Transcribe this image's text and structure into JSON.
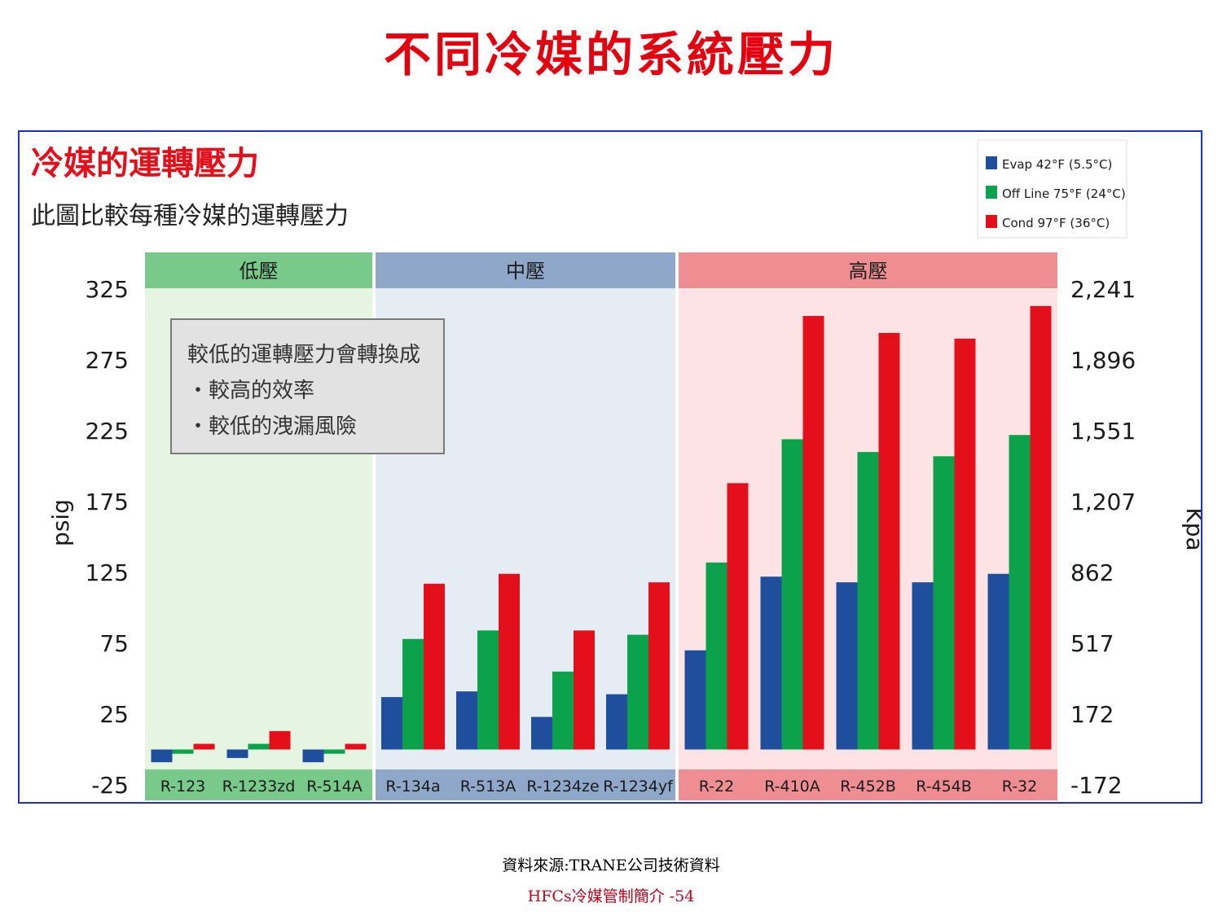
{
  "slide": {
    "title": "不同冷媒的系統壓力",
    "source": "資料來源:TRANE公司技術資料",
    "page_label": "HFCs冷媒管制簡介 -54"
  },
  "chart_data": {
    "type": "bar",
    "title": "冷媒的運轉壓力",
    "subtitle": "此圖比較每種冷媒的運轉壓力",
    "ylabel": "psig",
    "ylabel_right": "Kpa",
    "ylim": [
      -25,
      325
    ],
    "yticks": [
      325,
      275,
      225,
      175,
      125,
      75,
      25,
      -25
    ],
    "yticks_right": [
      "2,241",
      "1,896",
      "1,551",
      "1,207",
      "862",
      "517",
      "172",
      "-172"
    ],
    "groups": [
      {
        "label": "低壓",
        "categories": [
          "R-123",
          "R-1233zd",
          "R-514A"
        ],
        "color": "#78c98a",
        "bg": "#e6f5e1"
      },
      {
        "label": "中壓",
        "categories": [
          "R-134a",
          "R-513A",
          "R-1234ze",
          "R-1234yf"
        ],
        "color": "#8fa7c9",
        "bg": "#e6ecf4"
      },
      {
        "label": "高壓",
        "categories": [
          "R-22",
          "R-410A",
          "R-452B",
          "R-454B",
          "R-32"
        ],
        "color": "#ef8e92",
        "bg": "#fde3e3"
      }
    ],
    "categories": [
      "R-123",
      "R-1233zd",
      "R-514A",
      "R-134a",
      "R-513A",
      "R-1234ze",
      "R-1234yf",
      "R-22",
      "R-410A",
      "R-452B",
      "R-454B",
      "R-32"
    ],
    "series": [
      {
        "name": "Evap 42°F (5.5°C)",
        "color": "#1f4e9c",
        "values": [
          -9,
          -6,
          -9,
          37,
          41,
          23,
          39,
          70,
          122,
          118,
          118,
          124
        ]
      },
      {
        "name": "Off Line 75°F (24°C)",
        "color": "#0ca14b",
        "values": [
          -3,
          4,
          -3,
          78,
          84,
          55,
          81,
          132,
          219,
          210,
          207,
          222
        ]
      },
      {
        "name": "Cond 97°F (36°C)",
        "color": "#e3101c",
        "values": [
          4,
          13,
          4,
          117,
          124,
          84,
          118,
          188,
          306,
          294,
          290,
          313
        ]
      }
    ],
    "legend_position": "top-right",
    "grid": false,
    "annotation": {
      "lines": [
        "較低的運轉壓力會轉換成",
        "・較高的效率",
        "・較低的洩漏風險"
      ]
    }
  }
}
